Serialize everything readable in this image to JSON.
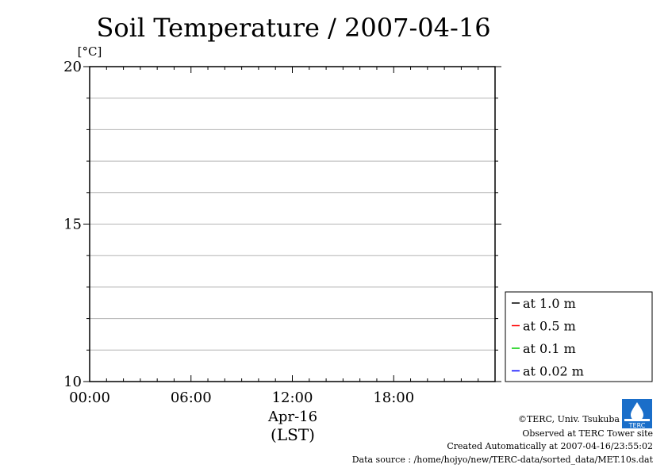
{
  "chart_data": {
    "type": "line",
    "title": "Soil Temperature / 2007-04-16",
    "ylabel": "[°C]",
    "ylim": [
      10,
      20
    ],
    "y_ticks": [
      "20",
      "15",
      "10"
    ],
    "x_ticks": [
      "00:00",
      "06:00",
      "12:00",
      "18:00"
    ],
    "x_date_label": "Apr-16",
    "x_unit_label": "(LST)",
    "grid": "horizontal",
    "legend_position": "right",
    "series": [
      {
        "name": "at 1.0 m",
        "color": "#000000",
        "values": []
      },
      {
        "name": "at 0.5 m",
        "color": "#ff0000",
        "values": []
      },
      {
        "name": "at 0.1 m",
        "color": "#00cc00",
        "values": []
      },
      {
        "name": "at 0.02 m",
        "color": "#0000ff",
        "values": []
      }
    ]
  },
  "footer": {
    "credit": "©TERC, Univ. Tsukuba",
    "site": "Observed at TERC Tower site",
    "created": "Created Automatically at 2007-04-16/23:55:02",
    "source": "Data source : /home/hojyo/new/TERC-data/sorted_data/MET.10s.dat",
    "logo_text": "TERC"
  }
}
